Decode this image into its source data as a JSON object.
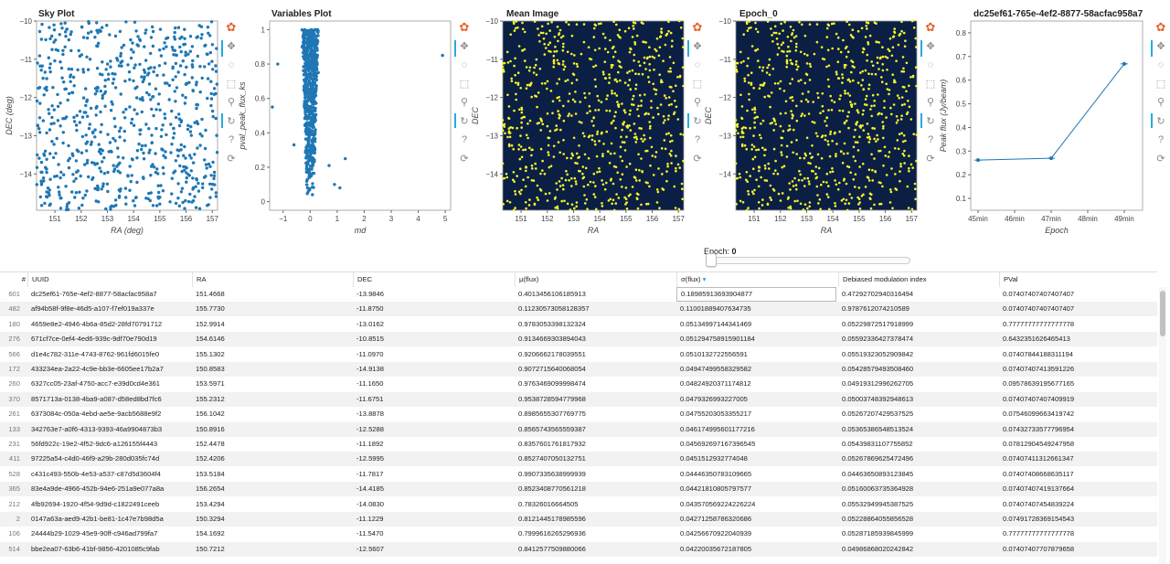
{
  "plots": {
    "sky": {
      "title": "Sky Plot",
      "xlabel": "RA (deg)",
      "ylabel": "DEC (deg)",
      "xticks": [
        "151",
        "152",
        "153",
        "154",
        "155",
        "156",
        "157"
      ],
      "yticks": [
        "−10",
        "−11",
        "−12",
        "−13",
        "−14"
      ]
    },
    "vars": {
      "title": "Variables Plot",
      "xlabel": "md",
      "ylabel": "pval_peak_flux_ks",
      "xticks": [
        "−1",
        "0",
        "1",
        "2",
        "3",
        "4",
        "5"
      ],
      "yticks": [
        "0",
        "0.2",
        "0.4",
        "0.6",
        "0.8",
        "1"
      ]
    },
    "mean": {
      "title": "Mean Image",
      "xlabel": "RA",
      "ylabel": "DEC",
      "xticks": [
        "151",
        "152",
        "153",
        "154",
        "155",
        "156",
        "157"
      ],
      "yticks": [
        "−10",
        "−11",
        "−12",
        "−13",
        "−14"
      ]
    },
    "epoch": {
      "title": "Epoch_0",
      "xlabel": "RA",
      "ylabel": "DEC",
      "xticks": [
        "151",
        "152",
        "153",
        "154",
        "155",
        "156",
        "157"
      ],
      "yticks": [
        "−10",
        "−11",
        "−12",
        "−13",
        "−14"
      ]
    },
    "lc": {
      "title": "dc25ef61-765e-4ef2-8877-58acfac958a7",
      "xlabel": "Epoch",
      "ylabel": "Peak flux (Jy/beam)",
      "xticks": [
        "45min",
        "46min",
        "47min",
        "48min",
        "49min"
      ],
      "yticks": [
        "0.1",
        "0.2",
        "0.3",
        "0.4",
        "0.5",
        "0.6",
        "0.7",
        "0.8"
      ]
    }
  },
  "colors": {
    "point": "#1f77b4",
    "image_bg": "#0b1f45",
    "image_point": "#f5f52a",
    "line": "#1f77b4"
  },
  "slider": {
    "label": "Epoch:",
    "value": "0"
  },
  "chart_data": [
    {
      "type": "scatter",
      "title": "Sky Plot",
      "xlabel": "RA (deg)",
      "ylabel": "DEC (deg)",
      "xlim": [
        150.3,
        157.2
      ],
      "ylim": [
        -14.95,
        -10
      ],
      "note_points": "~700 sources uniformly distributed in RA 150.3–157.2, DEC -15 to -10"
    },
    {
      "type": "scatter",
      "title": "Variables Plot",
      "xlabel": "md",
      "ylabel": "pval_peak_flux_ks",
      "xlim": [
        -1.5,
        5.2
      ],
      "ylim": [
        -0.05,
        1.05
      ],
      "points": [
        [
          -1.2,
          0.8
        ],
        [
          -1.4,
          0.55
        ],
        [
          -0.6,
          0.33
        ],
        [
          -0.3,
          0.9
        ],
        [
          0.3,
          0.75
        ],
        [
          0.7,
          0.21
        ],
        [
          0.9,
          0.1
        ],
        [
          1.1,
          0.08
        ],
        [
          1.3,
          0.25
        ],
        [
          4.9,
          0.85
        ]
      ]
    },
    {
      "type": "scatter",
      "title": "Mean Image",
      "xlabel": "RA",
      "ylabel": "DEC",
      "xlim": [
        150.3,
        157.2
      ],
      "ylim": [
        -14.95,
        -10
      ]
    },
    {
      "type": "scatter",
      "title": "Epoch_0",
      "xlabel": "RA",
      "ylabel": "DEC",
      "xlim": [
        150.3,
        157.2
      ],
      "ylim": [
        -14.95,
        -10
      ]
    },
    {
      "type": "line",
      "title": "dc25ef61-765e-4ef2-8877-58acfac958a7",
      "xlabel": "Epoch",
      "ylabel": "Peak flux (Jy/beam)",
      "x": [
        45,
        47,
        49
      ],
      "y": [
        0.262,
        0.27,
        0.669
      ],
      "err": [
        0.006,
        0.006,
        0.008
      ],
      "xlim": [
        44.8,
        49.5
      ],
      "ylim": [
        0.05,
        0.85
      ]
    }
  ],
  "table": {
    "columns": [
      {
        "label": "#",
        "sorted": ""
      },
      {
        "label": "UUID",
        "sorted": ""
      },
      {
        "label": "RA",
        "sorted": ""
      },
      {
        "label": "DEC",
        "sorted": ""
      },
      {
        "label": "μ(flux)",
        "sorted": ""
      },
      {
        "label": "σ(flux)",
        "sorted": "▾"
      },
      {
        "label": "Debiased modulation index",
        "sorted": ""
      },
      {
        "label": "PVal",
        "sorted": ""
      }
    ],
    "rows": [
      [
        "601",
        "dc25ef61-765e-4ef2-8877-58acfac958a7",
        "151.4668",
        "-13.9846",
        "0.4013456106185913",
        "0.18985913693904877",
        "0.47292702940316494",
        "0.07407407407407407"
      ],
      [
        "482",
        "af94b58f-9f8e-46d5-a107-f7ef019a337e",
        "155.7730",
        "-11.8750",
        "0.11230573058128357",
        "0.11001889407634735",
        "0.9787612074210589",
        "0.07407407407407407"
      ],
      [
        "180",
        "4659e8e2-4946-4b6a-85d2-28fd70791712",
        "152.9914",
        "-13.0162",
        "0.9783053398132324",
        "0.05134997144341469",
        "0.05229872517918999",
        "0.77777777777777778"
      ],
      [
        "276",
        "671cf7ce-0ef4-4ed6-939c-9df70e790d19",
        "154.6146",
        "-10.8515",
        "0.9134669303894043",
        "0.051294758915901184",
        "0.05592336427378474",
        "0.6432351626465413"
      ],
      [
        "566",
        "d1e4c782-311e-4743-8762-961fd6015fe0",
        "155.1302",
        "-11.0970",
        "0.9206662178039551",
        "0.0510132722556591",
        "0.05519323052909842",
        "0.07407844188311194"
      ],
      [
        "172",
        "433234ea-2a22-4c9e-bb3e-6605ee17b2a7",
        "150.8583",
        "-14.9138",
        "0.9072715640068054",
        "0.04947499558329582",
        "0.05428579493508460",
        "0.07407407413591226"
      ],
      [
        "260",
        "6327cc05-23af-4750-acc7-e39d0cd4e361",
        "153.5971",
        "-11.1650",
        "0.9763469099998474",
        "0.04824920371174812",
        "0.04919312996262705",
        "0.09578639195677165"
      ],
      [
        "370",
        "8571713a-0138-4ba9-a087-d58ed8bd7fc6",
        "155.2312",
        "-11.6751",
        "0.9538728594779968",
        "0.0479326993227005",
        "0.05003748392948613",
        "0.07407407407409919"
      ],
      [
        "261",
        "6373084c-050a-4ebd-ae5e-9acb5688e9f2",
        "156.1042",
        "-13.8878",
        "0.8985655307769775",
        "0.04755203053355217",
        "0.05267207429537525",
        "0.07546099663419742"
      ],
      [
        "133",
        "342763e7-a0f6-4313-9393-46a9904873b3",
        "150.8916",
        "-12.5288",
        "0.8565743565559387",
        "0.046174995601177216",
        "0.05365386548513524",
        "0.07432733577796954"
      ],
      [
        "231",
        "56fd922c-19e2-4f52-9dc6-a126155f4443",
        "152.4478",
        "-11.1892",
        "0.8357601761817932",
        "0.045692697167396545",
        "0.05439831107755852",
        "0.07812904549247958"
      ],
      [
        "411",
        "97225a54-c4d0-46f9-a29b-280d035fc74d",
        "152.4206",
        "-12.5995",
        "0.8527407050132751",
        "0.0451512932774048",
        "0.05267869625472496",
        "0.07407411312661347"
      ],
      [
        "528",
        "c431c493-550b-4e53-a537-c87d5d3604f4",
        "153.5184",
        "-11.7817",
        "0.9907335638999939",
        "0.04446350783109665",
        "0.04463650893123845",
        "0.07407408668635117"
      ],
      [
        "365",
        "83e4a9de-4966-452b-94e6-251a9e077a8a",
        "156.2654",
        "-14.4185",
        "0.8523408770561218",
        "0.04421810805797577",
        "0.05160063735364928",
        "0.07407407419137664"
      ],
      [
        "212",
        "4fb92694-1920-4f54-9d9d-c1822491ceeb",
        "153.4294",
        "-14.0830",
        "0.78326016664505",
        "0.043570569224226224",
        "0.05532949945387525",
        "0.07407407454839224"
      ],
      [
        "2",
        "0147a63a-aed9-42b1-be81-1c47e7b98d5a",
        "150.3294",
        "-11.1229",
        "0.8121445178985596",
        "0.04271258786320686",
        "0.05228864055856528",
        "0.07491728369154543"
      ],
      [
        "106",
        "24444b29-1029-45e9-90ff-c946ad799fa7",
        "154.1692",
        "-11.5470",
        "0.7999616265296936",
        "0.04256670922040939",
        "0.05287185939845999",
        "0.77777777777777778"
      ],
      [
        "514",
        "bbe2ea07-63b6-41bf-9856-4201085c9fab",
        "150.7212",
        "-12.5607",
        "0.8412577509880066",
        "0.04220035672187805",
        "0.04986868020242842",
        "0.07407407707879658"
      ]
    ]
  }
}
